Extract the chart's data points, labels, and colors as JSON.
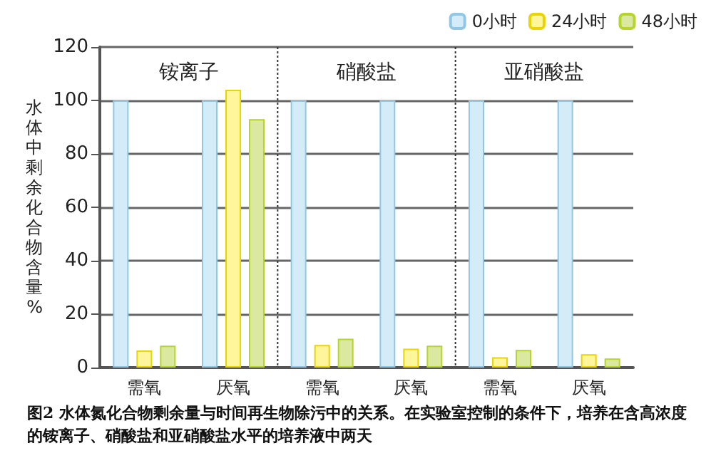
{
  "chart_data": {
    "type": "bar",
    "title": "图2 水体氮化合物剩余量与时间再生物除污中的关系。在实验室控制的条件下，培养在含高浓度的铵离子、硝酸盐和亚硝酸盐水平的培养液中两天",
    "ylabel": "水体中剩余化合物含量%",
    "categories": [
      "需氧",
      "厌氧",
      "需氧",
      "厌氧",
      "需氧",
      "厌氧"
    ],
    "series": [
      {
        "name": "0小时",
        "color": "#d4ebf8",
        "values": [
          100,
          100,
          100,
          100,
          100,
          100
        ]
      },
      {
        "name": "24小时",
        "color": "#fff59a",
        "values": [
          6.4,
          104,
          8.5,
          7.1,
          3.9,
          5
        ]
      },
      {
        "name": "48小时",
        "color": "#dbe8a0",
        "values": [
          8.2,
          93,
          10.8,
          8.2,
          6.6,
          3.4
        ]
      }
    ],
    "annotations": [
      "铵离子",
      "硝酸盐",
      "亚硝酸盐"
    ],
    "ylim": [
      0,
      120
    ],
    "yticks": [
      0,
      20,
      40,
      60,
      80,
      100,
      120
    ],
    "grid": "y",
    "legend": "top right"
  }
}
